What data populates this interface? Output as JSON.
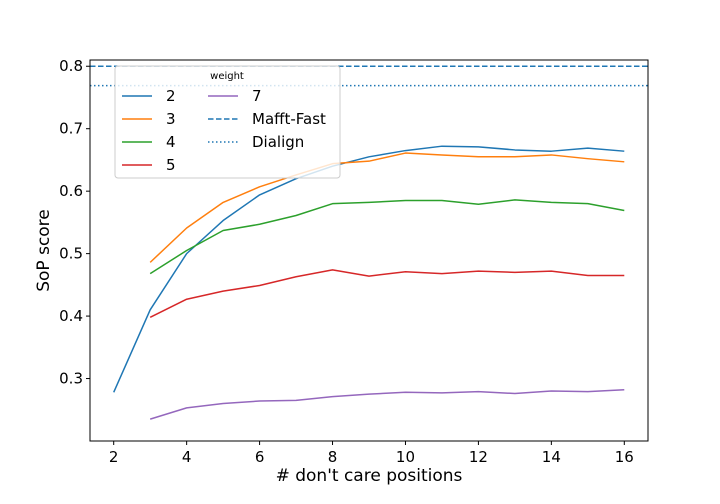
{
  "chart_data": {
    "type": "line",
    "xlabel": "# don't care positions",
    "ylabel": "SoP score",
    "xlim": [
      1.35,
      16.65
    ],
    "ylim": [
      0.2,
      0.81
    ],
    "xticks": [
      2,
      4,
      6,
      8,
      10,
      12,
      14,
      16
    ],
    "yticks": [
      0.3,
      0.4,
      0.5,
      0.6,
      0.7,
      0.8
    ],
    "xtick_labels": [
      "2",
      "4",
      "6",
      "8",
      "10",
      "12",
      "14",
      "16"
    ],
    "ytick_labels": [
      "0.3",
      "0.4",
      "0.5",
      "0.6",
      "0.7",
      "0.8"
    ],
    "grid": false,
    "legend": {
      "title": "weight",
      "position": "top-left",
      "columns": 2
    },
    "series": [
      {
        "name": "2",
        "color": "#1f77b4",
        "x": [
          2,
          3,
          4,
          5,
          6,
          7,
          8,
          9,
          10,
          11,
          12,
          13,
          14,
          15,
          16
        ],
        "y": [
          0.278,
          0.41,
          0.5,
          0.553,
          0.594,
          0.62,
          0.64,
          0.655,
          0.665,
          0.672,
          0.671,
          0.666,
          0.664,
          0.669,
          0.664
        ]
      },
      {
        "name": "3",
        "color": "#ff7f0e",
        "x": [
          3,
          4,
          5,
          6,
          7,
          8,
          9,
          10,
          11,
          12,
          13,
          14,
          15,
          16
        ],
        "y": [
          0.486,
          0.541,
          0.582,
          0.607,
          0.626,
          0.644,
          0.648,
          0.661,
          0.658,
          0.655,
          0.655,
          0.658,
          0.652,
          0.647
        ]
      },
      {
        "name": "4",
        "color": "#2ca02c",
        "x": [
          3,
          4,
          5,
          6,
          7,
          8,
          9,
          10,
          11,
          12,
          13,
          14,
          15,
          16
        ],
        "y": [
          0.468,
          0.505,
          0.537,
          0.547,
          0.561,
          0.58,
          0.582,
          0.585,
          0.585,
          0.579,
          0.586,
          0.582,
          0.58,
          0.569
        ]
      },
      {
        "name": "5",
        "color": "#d62728",
        "x": [
          3,
          4,
          5,
          6,
          7,
          8,
          9,
          10,
          11,
          12,
          13,
          14,
          15,
          16
        ],
        "y": [
          0.398,
          0.427,
          0.44,
          0.449,
          0.463,
          0.474,
          0.464,
          0.471,
          0.468,
          0.472,
          0.47,
          0.472,
          0.465,
          0.465
        ]
      },
      {
        "name": "7",
        "color": "#9467bd",
        "x": [
          3,
          4,
          5,
          6,
          7,
          8,
          9,
          10,
          11,
          12,
          13,
          14,
          15,
          16
        ],
        "y": [
          0.235,
          0.253,
          0.26,
          0.264,
          0.265,
          0.271,
          0.275,
          0.278,
          0.277,
          0.279,
          0.276,
          0.28,
          0.279,
          0.282
        ]
      }
    ],
    "reference_lines": [
      {
        "name": "Mafft-Fast",
        "color": "#1f77b4",
        "style": "dashed",
        "y": 0.8
      },
      {
        "name": "Dialign",
        "color": "#1f77b4",
        "style": "dotted",
        "y": 0.769
      }
    ]
  }
}
